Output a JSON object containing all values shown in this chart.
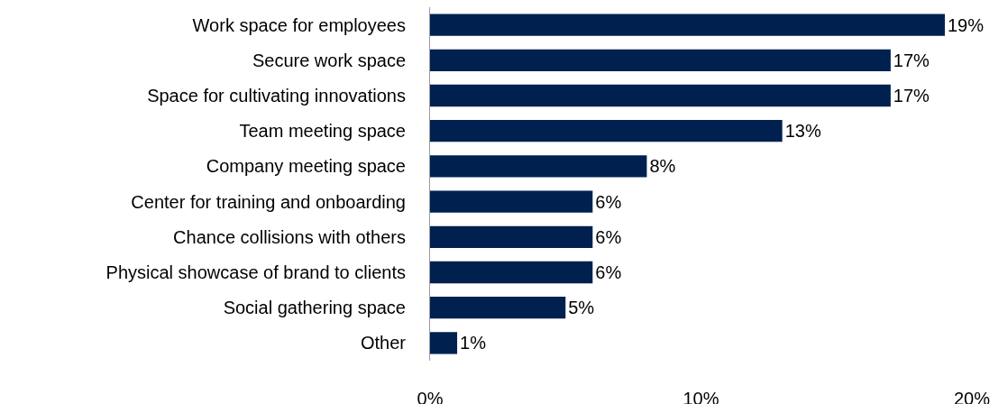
{
  "chart_data": {
    "type": "bar",
    "orientation": "horizontal",
    "categories": [
      "Work space for employees",
      "Secure work space",
      "Space for cultivating innovations",
      "Team meeting space",
      "Company meeting space",
      "Center for training and onboarding",
      "Chance collisions with others",
      "Physical showcase of brand to clients",
      "Social gathering space",
      "Other"
    ],
    "values": [
      19,
      17,
      17,
      13,
      8,
      6,
      6,
      6,
      5,
      1
    ],
    "value_labels": [
      "19%",
      "17%",
      "17%",
      "13%",
      "8%",
      "6%",
      "6%",
      "6%",
      "5%",
      "1%"
    ],
    "color": "#002050",
    "xlim": [
      0,
      20
    ],
    "xticks": [
      {
        "value": 0,
        "label": "0%"
      },
      {
        "value": 10,
        "label": "10%"
      },
      {
        "value": 20,
        "label": "20%"
      }
    ],
    "grid": false,
    "legend": false
  }
}
